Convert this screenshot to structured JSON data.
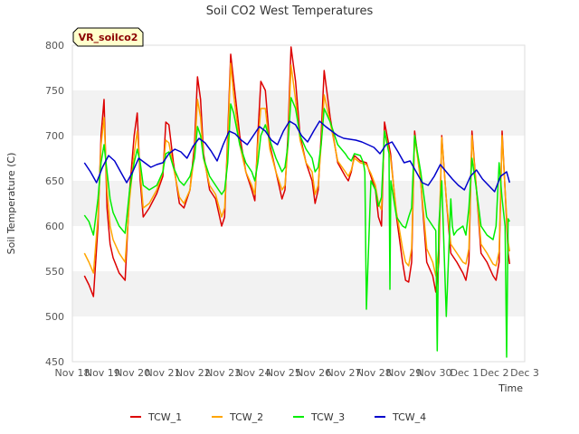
{
  "chart_data": {
    "type": "line",
    "title": "Soil CO2 West Temperatures",
    "xlabel": "Time",
    "ylabel": "Soil Temperature (C)",
    "station_label": "VR_soilco2",
    "x_ticks": [
      "Nov 18",
      "Nov 19",
      "Nov 20",
      "Nov 21",
      "Nov 22",
      "Nov 23",
      "Nov 24",
      "Nov 25",
      "Nov 26",
      "Nov 27",
      "Nov 28",
      "Nov 29",
      "Nov 30",
      "Dec 1",
      "Dec 2",
      "Dec 3"
    ],
    "xlim": [
      0,
      15
    ],
    "ylim": [
      450,
      800
    ],
    "y_ticks": [
      450,
      500,
      550,
      600,
      650,
      700,
      750,
      800
    ],
    "grid": "horizontal bands",
    "legend_position": "bottom-center",
    "series": [
      {
        "name": "TCW_1",
        "color": "#dd0000",
        "x": [
          0.4,
          0.55,
          0.7,
          0.85,
          0.95,
          1.05,
          1.15,
          1.25,
          1.35,
          1.55,
          1.75,
          1.9,
          2.05,
          2.15,
          2.25,
          2.35,
          2.55,
          2.8,
          3.0,
          3.1,
          3.2,
          3.35,
          3.55,
          3.7,
          3.9,
          4.05,
          4.15,
          4.25,
          4.35,
          4.55,
          4.75,
          4.95,
          5.05,
          5.15,
          5.25,
          5.35,
          5.55,
          5.75,
          5.95,
          6.05,
          6.15,
          6.25,
          6.4,
          6.55,
          6.75,
          6.95,
          7.05,
          7.15,
          7.25,
          7.4,
          7.55,
          7.75,
          7.95,
          8.05,
          8.15,
          8.25,
          8.35,
          8.55,
          8.8,
          9.05,
          9.15,
          9.25,
          9.35,
          9.55,
          9.75,
          9.9,
          10.05,
          10.15,
          10.25,
          10.35,
          10.55,
          10.75,
          10.95,
          11.05,
          11.15,
          11.25,
          11.35,
          11.55,
          11.75,
          11.95,
          12.05,
          12.15,
          12.25,
          12.4,
          12.55,
          12.75,
          12.95,
          13.05,
          13.15,
          13.25,
          13.4,
          13.55,
          13.75,
          13.95,
          14.05,
          14.15,
          14.25,
          14.35,
          14.45,
          14.5
        ],
        "values": [
          545,
          535,
          522,
          600,
          700,
          740,
          620,
          580,
          565,
          548,
          540,
          640,
          700,
          725,
          650,
          610,
          620,
          636,
          655,
          715,
          712,
          670,
          625,
          620,
          640,
          690,
          765,
          740,
          680,
          640,
          630,
          600,
          610,
          700,
          790,
          760,
          700,
          660,
          640,
          628,
          700,
          760,
          750,
          690,
          660,
          630,
          640,
          700,
          798,
          760,
          700,
          670,
          650,
          625,
          640,
          700,
          772,
          720,
          670,
          655,
          650,
          660,
          678,
          672,
          670,
          655,
          640,
          610,
          600,
          715,
          680,
          610,
          560,
          540,
          538,
          560,
          705,
          650,
          560,
          545,
          527,
          560,
          700,
          630,
          570,
          560,
          548,
          540,
          560,
          705,
          640,
          570,
          560,
          545,
          540,
          560,
          705,
          640,
          570,
          558
        ]
      },
      {
        "name": "TCW_2",
        "color": "#ffa500",
        "x": [
          0.4,
          0.55,
          0.7,
          0.85,
          0.95,
          1.05,
          1.15,
          1.25,
          1.35,
          1.55,
          1.75,
          1.9,
          2.05,
          2.15,
          2.25,
          2.35,
          2.55,
          2.8,
          3.0,
          3.1,
          3.2,
          3.35,
          3.55,
          3.7,
          3.9,
          4.05,
          4.15,
          4.25,
          4.35,
          4.55,
          4.75,
          4.95,
          5.05,
          5.15,
          5.25,
          5.35,
          5.55,
          5.75,
          5.95,
          6.05,
          6.15,
          6.25,
          6.4,
          6.55,
          6.75,
          6.95,
          7.05,
          7.15,
          7.25,
          7.4,
          7.55,
          7.75,
          7.95,
          8.05,
          8.15,
          8.25,
          8.35,
          8.55,
          8.8,
          9.05,
          9.15,
          9.25,
          9.35,
          9.55,
          9.75,
          9.9,
          10.05,
          10.15,
          10.25,
          10.35,
          10.55,
          10.75,
          10.95,
          11.05,
          11.15,
          11.25,
          11.35,
          11.55,
          11.75,
          11.95,
          12.05,
          12.15,
          12.25,
          12.4,
          12.55,
          12.75,
          12.95,
          13.05,
          13.15,
          13.25,
          13.4,
          13.55,
          13.75,
          13.95,
          14.05,
          14.15,
          14.25,
          14.35,
          14.45,
          14.5
        ],
        "values": [
          570,
          560,
          548,
          610,
          690,
          720,
          640,
          600,
          585,
          570,
          560,
          630,
          680,
          705,
          660,
          620,
          625,
          640,
          660,
          695,
          692,
          665,
          632,
          625,
          640,
          680,
          740,
          720,
          675,
          645,
          635,
          610,
          620,
          690,
          780,
          745,
          690,
          660,
          645,
          635,
          690,
          730,
          730,
          685,
          660,
          640,
          645,
          690,
          778,
          740,
          695,
          670,
          660,
          635,
          645,
          690,
          745,
          715,
          672,
          660,
          655,
          662,
          675,
          670,
          668,
          658,
          645,
          625,
          618,
          705,
          675,
          615,
          575,
          560,
          556,
          575,
          700,
          650,
          575,
          560,
          545,
          575,
          698,
          630,
          580,
          570,
          560,
          558,
          575,
          700,
          640,
          580,
          570,
          558,
          556,
          572,
          700,
          640,
          582,
          572
        ]
      },
      {
        "name": "TCW_3",
        "color": "#00ee00",
        "x": [
          0.4,
          0.55,
          0.7,
          0.85,
          0.95,
          1.05,
          1.15,
          1.25,
          1.35,
          1.55,
          1.75,
          1.9,
          2.05,
          2.15,
          2.25,
          2.35,
          2.55,
          2.8,
          3.0,
          3.1,
          3.2,
          3.35,
          3.55,
          3.7,
          3.9,
          4.05,
          4.15,
          4.25,
          4.35,
          4.55,
          4.75,
          4.95,
          5.05,
          5.15,
          5.25,
          5.35,
          5.55,
          5.75,
          5.95,
          6.05,
          6.15,
          6.25,
          6.4,
          6.55,
          6.75,
          6.95,
          7.05,
          7.15,
          7.25,
          7.4,
          7.55,
          7.75,
          7.95,
          8.05,
          8.15,
          8.25,
          8.35,
          8.55,
          8.8,
          9.05,
          9.15,
          9.25,
          9.35,
          9.55,
          9.65,
          9.7,
          9.75,
          9.9,
          10.05,
          10.15,
          10.25,
          10.35,
          10.5,
          10.53,
          10.56,
          10.75,
          10.95,
          11.05,
          11.15,
          11.25,
          11.35,
          11.55,
          11.75,
          11.95,
          12.05,
          12.1,
          12.15,
          12.25,
          12.4,
          12.55,
          12.6,
          12.65,
          12.75,
          12.95,
          13.05,
          13.15,
          13.25,
          13.4,
          13.55,
          13.75,
          13.95,
          14.05,
          14.15,
          14.25,
          14.35,
          14.4,
          14.45,
          14.5
        ],
        "values": [
          612,
          605,
          590,
          630,
          670,
          690,
          660,
          630,
          615,
          600,
          592,
          640,
          670,
          685,
          670,
          645,
          640,
          645,
          660,
          680,
          682,
          665,
          650,
          645,
          655,
          675,
          710,
          700,
          675,
          655,
          645,
          635,
          640,
          670,
          735,
          725,
          690,
          670,
          660,
          650,
          670,
          700,
          712,
          695,
          675,
          660,
          665,
          690,
          742,
          730,
          700,
          685,
          675,
          660,
          665,
          690,
          730,
          715,
          690,
          680,
          675,
          672,
          680,
          678,
          670,
          660,
          508,
          650,
          640,
          622,
          632,
          705,
          680,
          530,
          650,
          610,
          600,
          598,
          610,
          620,
          700,
          660,
          610,
          600,
          595,
          462,
          600,
          650,
          500,
          630,
          600,
          590,
          595,
          600,
          590,
          620,
          675,
          640,
          600,
          590,
          585,
          600,
          670,
          630,
          600,
          455,
          608,
          605
        ]
      },
      {
        "name": "TCW_4",
        "color": "#0000cc",
        "x": [
          0.4,
          0.6,
          0.8,
          1.0,
          1.2,
          1.4,
          1.6,
          1.8,
          2.0,
          2.2,
          2.4,
          2.6,
          2.8,
          3.0,
          3.2,
          3.4,
          3.6,
          3.8,
          4.0,
          4.2,
          4.4,
          4.6,
          4.8,
          5.0,
          5.2,
          5.4,
          5.6,
          5.8,
          6.0,
          6.2,
          6.4,
          6.6,
          6.8,
          7.0,
          7.2,
          7.4,
          7.6,
          7.8,
          8.0,
          8.2,
          8.4,
          8.6,
          8.8,
          9.0,
          9.2,
          9.4,
          9.6,
          9.8,
          10.0,
          10.2,
          10.4,
          10.6,
          10.8,
          11.0,
          11.2,
          11.4,
          11.6,
          11.8,
          12.0,
          12.2,
          12.4,
          12.6,
          12.8,
          13.0,
          13.2,
          13.4,
          13.6,
          13.8,
          14.0,
          14.2,
          14.4,
          14.5
        ],
        "values": [
          670,
          660,
          648,
          665,
          678,
          672,
          660,
          648,
          660,
          675,
          670,
          665,
          668,
          670,
          680,
          685,
          682,
          675,
          688,
          697,
          692,
          683,
          672,
          690,
          705,
          702,
          695,
          690,
          700,
          710,
          705,
          695,
          690,
          705,
          716,
          712,
          700,
          693,
          705,
          716,
          710,
          705,
          700,
          697,
          696,
          695,
          693,
          690,
          687,
          680,
          690,
          693,
          682,
          670,
          672,
          660,
          648,
          645,
          655,
          668,
          660,
          652,
          645,
          640,
          655,
          662,
          652,
          645,
          638,
          655,
          660,
          648
        ]
      }
    ]
  }
}
